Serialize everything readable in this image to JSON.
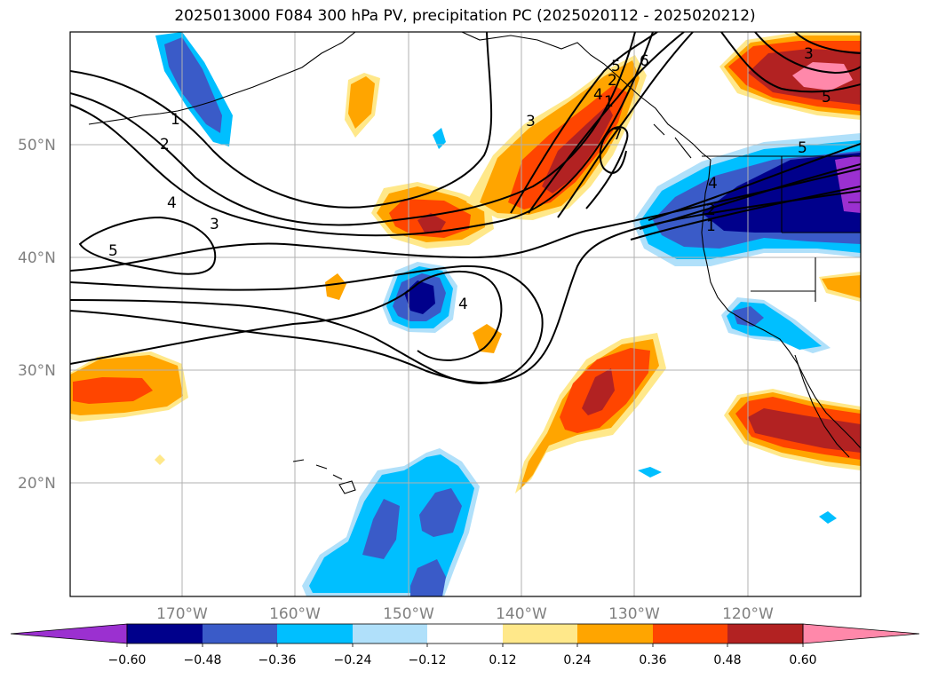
{
  "title": "2025013000 F084 300 hPa PV, precipitation PC (2025020112 - 2025020212)",
  "lat_labels": [
    "50°N",
    "40°N",
    "30°N",
    "20°N"
  ],
  "lon_labels": [
    "170°W",
    "160°W",
    "150°W",
    "140°W",
    "130°W",
    "120°W"
  ],
  "colorbar": {
    "ticks": [
      "−0.60",
      "−0.48",
      "−0.36",
      "−0.24",
      "−0.12",
      "0.12",
      "0.24",
      "0.36",
      "0.48",
      "0.60"
    ],
    "colors": [
      "#9b30d0",
      "#00008b",
      "#3a5bc8",
      "#00bfff",
      "#b0e0fa",
      "#ffffff",
      "#ffe88a",
      "#ffa500",
      "#ff4500",
      "#b22222",
      "#ff88aa"
    ]
  },
  "contour_labels": [
    "1",
    "2",
    "3",
    "4",
    "5",
    "1",
    "2",
    "3",
    "4",
    "5",
    "6",
    "7",
    "1",
    "2",
    "4",
    "5",
    "3",
    "5",
    "4"
  ],
  "colors": {
    "coast": "#000000",
    "grid": "#b0b0b0",
    "pv_contour": "#000000"
  }
}
